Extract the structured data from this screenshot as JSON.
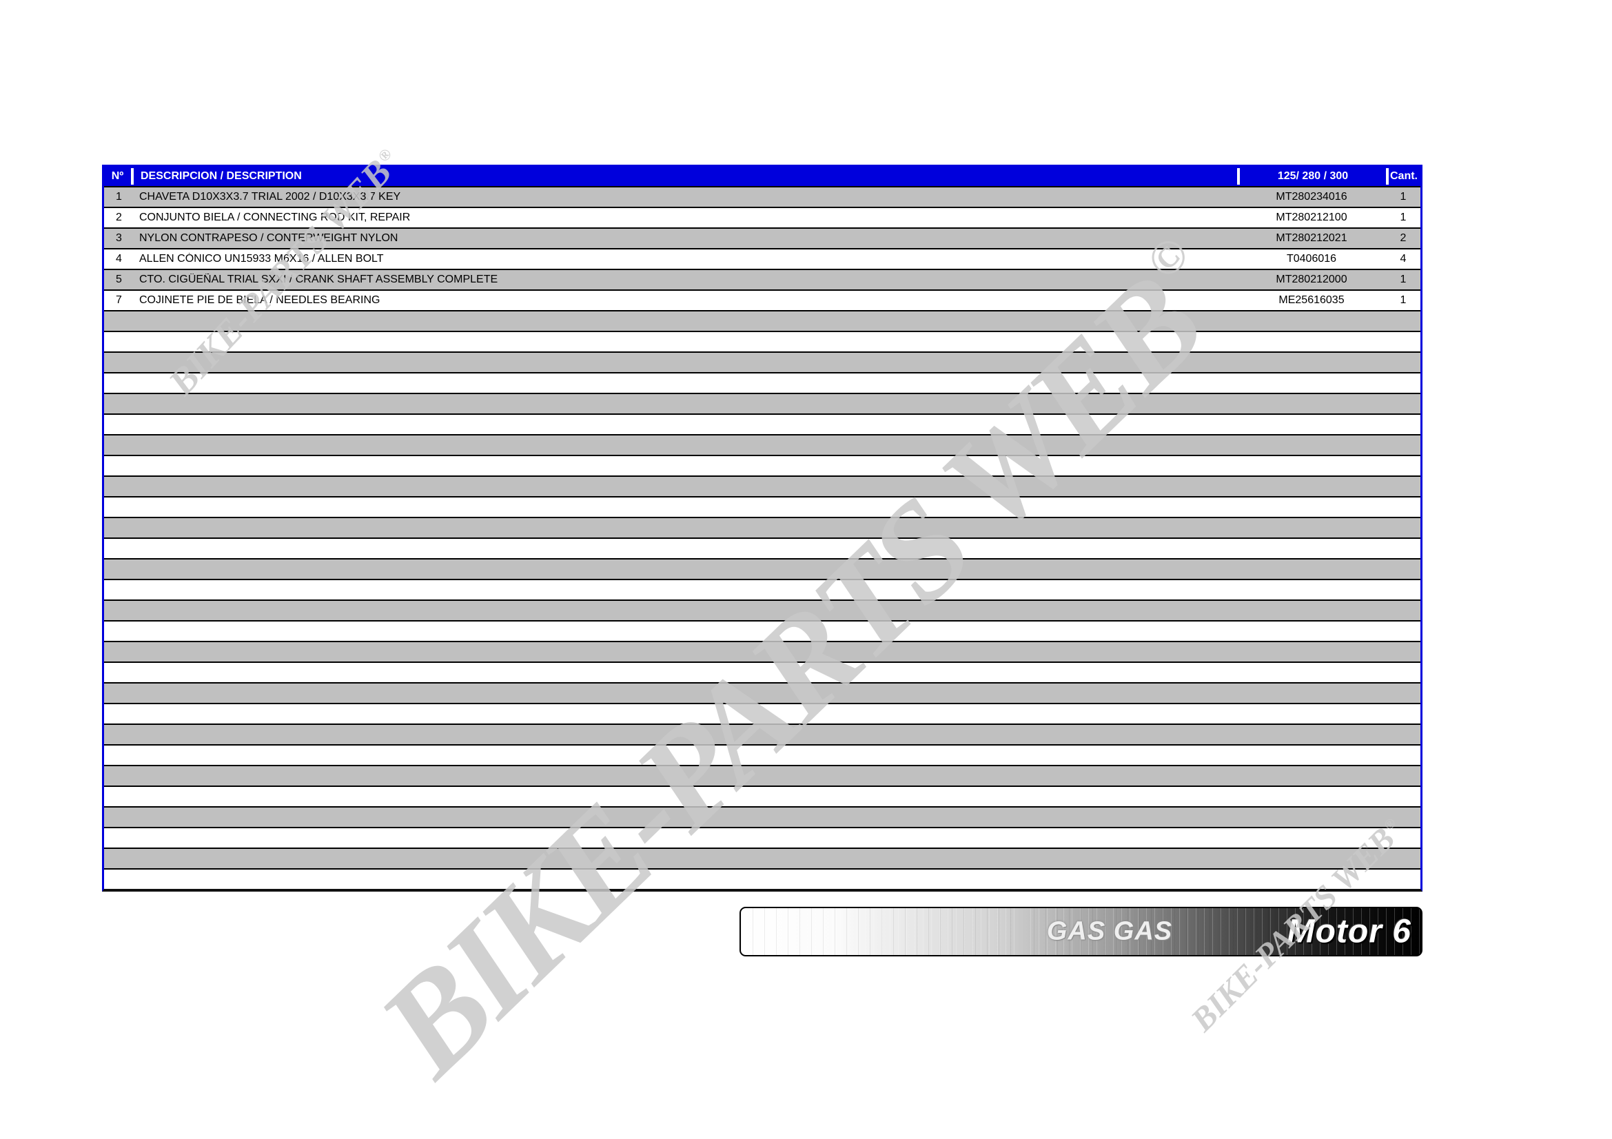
{
  "table": {
    "headers": {
      "num": "Nº",
      "description": "DESCRIPCION / DESCRIPTION",
      "part": "125/ 280 / 300",
      "qty": "Cant."
    },
    "rows": [
      {
        "num": "1",
        "description": "CHAVETA D10X3X3.7 TRIAL 2002 / D10X3X3.7 KEY",
        "part": "MT280234016",
        "qty": "1"
      },
      {
        "num": "2",
        "description": "CONJUNTO BIELA / CONNECTING ROD KIT, REPAIR",
        "part": "MT280212100",
        "qty": "1"
      },
      {
        "num": "3",
        "description": "NYLON CONTRAPESO / CONTERWEIGHT NYLON",
        "part": "MT280212021",
        "qty": "2"
      },
      {
        "num": "4",
        "description": "ALLEN CÓNICO UN15933 M6X16 / ALLEN BOLT",
        "part": "T0406016",
        "qty": "4"
      },
      {
        "num": "5",
        "description": "CTO. CIGÜEÑAL TRIAL SXXI / CRANK SHAFT ASSEMBLY COMPLETE",
        "part": "MT280212000",
        "qty": "1"
      },
      {
        "num": "7",
        "description": "COJINETE PIE DE BIELA / NEEDLES BEARING",
        "part": "ME25616035",
        "qty": "1"
      }
    ],
    "empty_row_count": 28
  },
  "watermarks": {
    "large_text": "BIKE-PARTS WEB",
    "large_symbol": "©",
    "small_text": "BIKE-PARTS WEB",
    "small_symbol": "®"
  },
  "footer": {
    "brand": "GAS GAS",
    "model": "Motor 6"
  },
  "colors": {
    "header_bg": "#0000DC",
    "table_border": "#0000DC",
    "row_gray": "#C0C0C0",
    "watermark": "#C9C9C9",
    "banner_border": "#000000"
  }
}
